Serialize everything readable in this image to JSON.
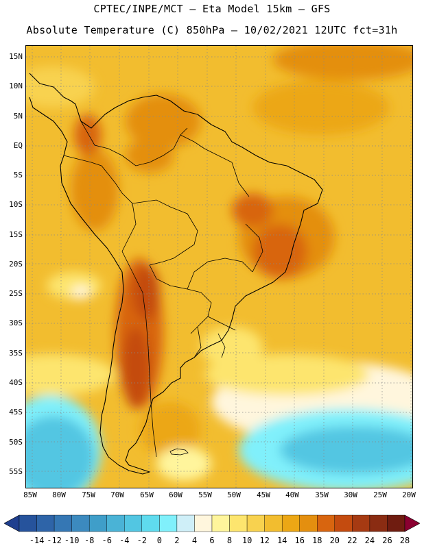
{
  "header": {
    "line1": "CPTEC/INPE/MCT –  Eta Model 15km – GFS",
    "line2": "Absolute Temperature (C) 850hPa – 10/02/2021 12UTC fct=31h"
  },
  "map": {
    "lat_labels": [
      "15N",
      "10N",
      "5N",
      "EQ",
      "5S",
      "10S",
      "15S",
      "20S",
      "25S",
      "30S",
      "35S",
      "40S",
      "45S",
      "50S",
      "55S"
    ],
    "lon_labels": [
      "85W",
      "80W",
      "75W",
      "70W",
      "65W",
      "60W",
      "55W",
      "50W",
      "45W",
      "40W",
      "35W",
      "30W",
      "25W",
      "20W"
    ]
  },
  "colorbar": {
    "labels": [
      "-14",
      "-12",
      "-10",
      "-8",
      "-6",
      "-4",
      "-2",
      "0",
      "2",
      "4",
      "6",
      "8",
      "10",
      "12",
      "14",
      "16",
      "18",
      "20",
      "22",
      "24",
      "26",
      "28"
    ],
    "colors": [
      "#1f3f8f",
      "#26539c",
      "#2e64a8",
      "#3577b4",
      "#3c8abf",
      "#3f9ec9",
      "#4ab3d6",
      "#52c6e2",
      "#5fdbee",
      "#80f0fb",
      "#cfeff8",
      "#fff6dd",
      "#fff59c",
      "#fde56e",
      "#f8d24f",
      "#f2bd2f",
      "#eca715",
      "#e48f0f",
      "#d8650f",
      "#c44b0f",
      "#a63a12",
      "#8a2c12",
      "#6f1c10",
      "#8a0030"
    ]
  }
}
